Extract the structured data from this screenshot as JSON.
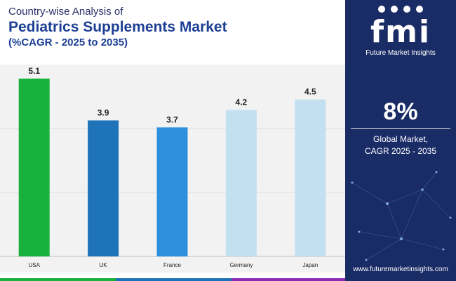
{
  "header": {
    "subtitle": "Country-wise Analysis of",
    "title": "Pediatrics Supplements Market",
    "cagr_range": "(%CAGR - 2025 to 2035)"
  },
  "chart_data": {
    "type": "bar",
    "categories": [
      "USA",
      "UK",
      "France",
      "Germany",
      "Japan"
    ],
    "values": [
      5.1,
      3.9,
      3.7,
      4.2,
      4.5
    ],
    "value_labels": [
      "5.1",
      "3.9",
      "3.7",
      "4.2",
      "4.5"
    ],
    "bar_colors": [
      "#16b23c",
      "#1f74b9",
      "#2e90dc",
      "#c3e0f1",
      "#c3e0f1"
    ],
    "ylim": [
      0,
      5.5
    ],
    "grid": true,
    "title": "",
    "xlabel": "",
    "ylabel": ""
  },
  "sidebar": {
    "logo_text": "fmi",
    "logo_subtitle": "Future Market Insights",
    "stat_value": "8%",
    "stat_label_line1": "Global Market,",
    "stat_label_line2": "CAGR 2025 - 2035",
    "website": "www.futuremarketinsights.com"
  },
  "colors": {
    "sidebar_bg": "#1a2c66",
    "title": "#1c3f94",
    "footer": [
      "#16b23c",
      "#1f74b9",
      "#8c2bb8"
    ]
  }
}
